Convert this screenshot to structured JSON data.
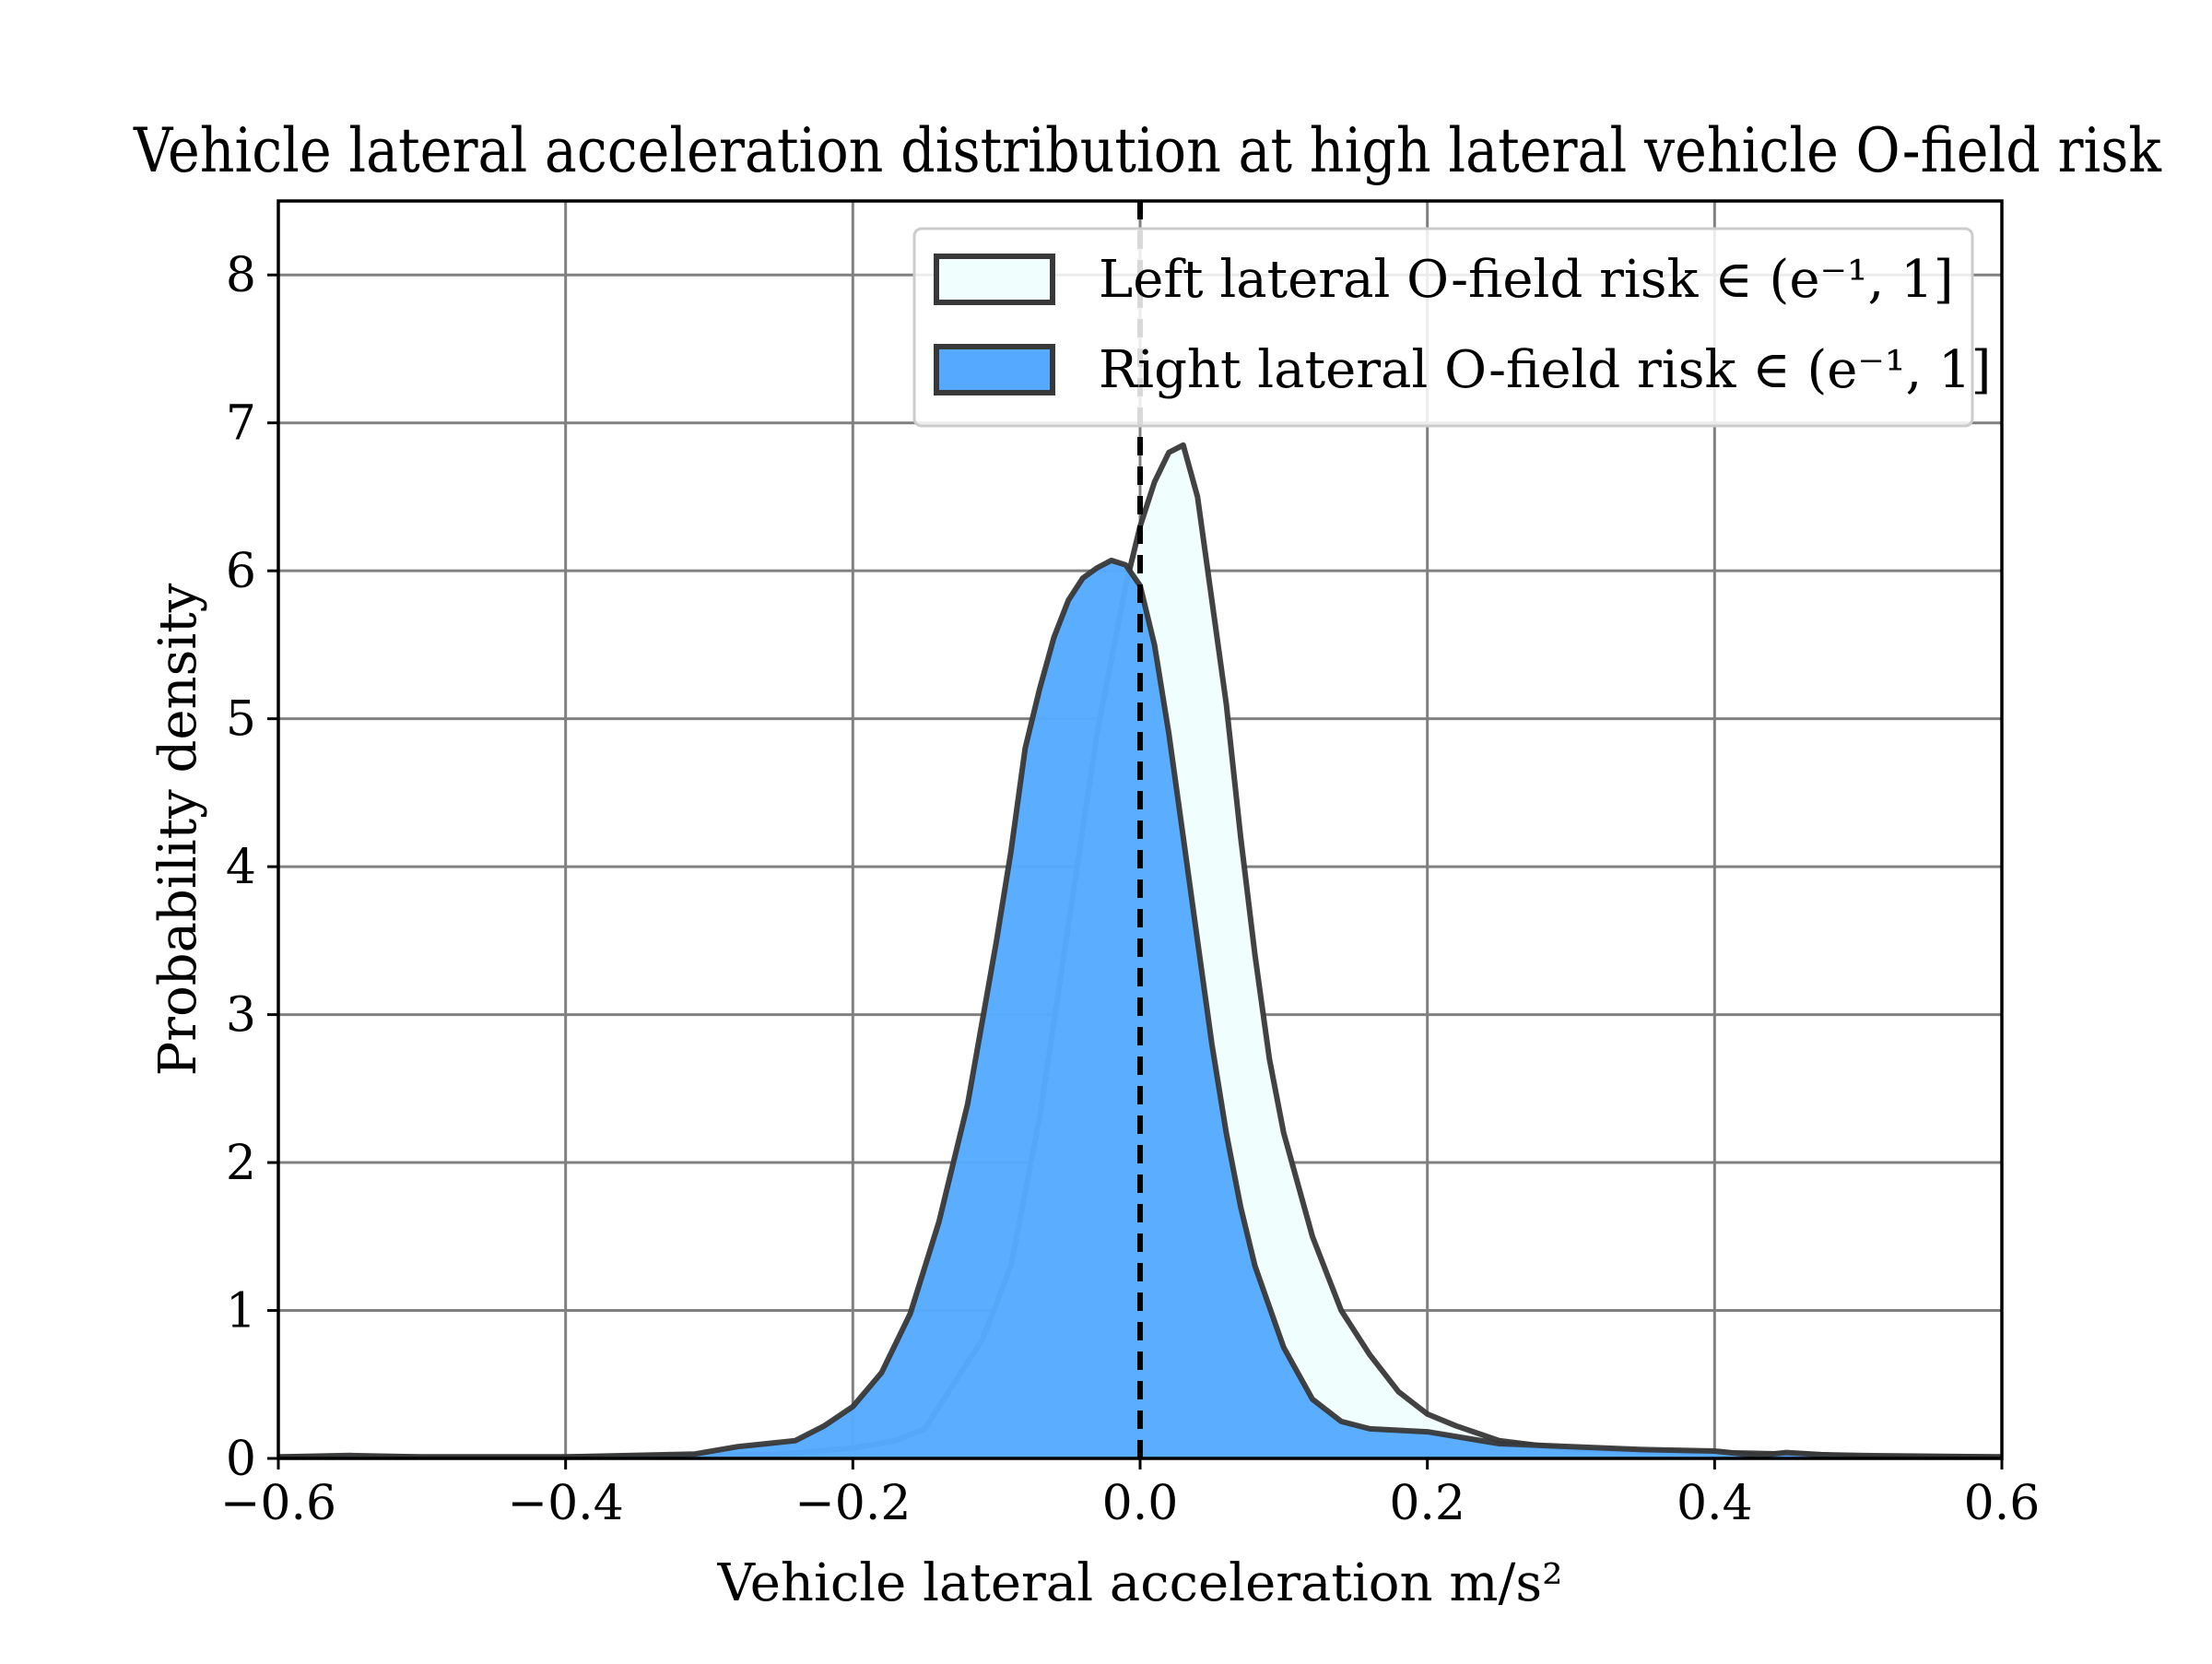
{
  "chart_data": {
    "type": "area",
    "title": "Vehicle lateral acceleration distribution at high lateral vehicle O-field risk",
    "xlabel": "Vehicle lateral acceleration m/s²",
    "ylabel": "Probability density",
    "xlim": [
      -0.6,
      0.6
    ],
    "ylim": [
      0,
      8.5
    ],
    "xticks": [
      -0.6,
      -0.4,
      -0.2,
      0.0,
      0.2,
      0.4,
      0.6
    ],
    "xtick_labels": [
      "−0.6",
      "−0.4",
      "−0.2",
      "0.0",
      "0.2",
      "0.4",
      "0.6"
    ],
    "yticks": [
      0,
      1,
      2,
      3,
      4,
      5,
      6,
      7,
      8
    ],
    "ytick_labels": [
      "0",
      "1",
      "2",
      "3",
      "4",
      "5",
      "6",
      "7",
      "8"
    ],
    "grid": true,
    "legend_position": "top-right",
    "reference_line": {
      "x": 0.0,
      "style": "dashed",
      "color": "#000000"
    },
    "series": [
      {
        "name": "Left lateral O-field risk ∈ (e⁻¹, 1]",
        "fill": "#f0fefe",
        "edge": "#383838",
        "x": [
          -0.6,
          -0.5,
          -0.4,
          -0.3,
          -0.25,
          -0.2,
          -0.17,
          -0.15,
          -0.13,
          -0.11,
          -0.09,
          -0.07,
          -0.05,
          -0.03,
          -0.01,
          0.0,
          0.01,
          0.02,
          0.03,
          0.04,
          0.05,
          0.06,
          0.07,
          0.08,
          0.09,
          0.1,
          0.12,
          0.14,
          0.16,
          0.18,
          0.2,
          0.22,
          0.25,
          0.3,
          0.35,
          0.4,
          0.45,
          0.5,
          0.6
        ],
        "y": [
          0.01,
          0.01,
          0.01,
          0.02,
          0.03,
          0.07,
          0.12,
          0.2,
          0.5,
          0.8,
          1.3,
          2.3,
          3.6,
          4.9,
          5.9,
          6.3,
          6.6,
          6.8,
          6.85,
          6.5,
          5.8,
          5.1,
          4.2,
          3.4,
          2.7,
          2.2,
          1.5,
          1.0,
          0.7,
          0.45,
          0.3,
          0.22,
          0.12,
          0.06,
          0.05,
          0.04,
          0.03,
          0.02,
          0.01
        ]
      },
      {
        "name": "Right lateral O-field risk ∈ (e⁻¹, 1]",
        "fill": "#55aaff",
        "edge": "#383838",
        "x": [
          -0.6,
          -0.55,
          -0.5,
          -0.4,
          -0.31,
          -0.28,
          -0.26,
          -0.24,
          -0.22,
          -0.2,
          -0.18,
          -0.16,
          -0.14,
          -0.12,
          -0.1,
          -0.09,
          -0.08,
          -0.07,
          -0.06,
          -0.05,
          -0.04,
          -0.03,
          -0.02,
          -0.01,
          0.0,
          0.01,
          0.02,
          0.03,
          0.04,
          0.05,
          0.06,
          0.07,
          0.08,
          0.1,
          0.12,
          0.14,
          0.16,
          0.2,
          0.25,
          0.3,
          0.35,
          0.4,
          0.43,
          0.45,
          0.5,
          0.6
        ],
        "y": [
          0.01,
          0.02,
          0.01,
          0.01,
          0.03,
          0.08,
          0.1,
          0.12,
          0.22,
          0.35,
          0.58,
          0.98,
          1.6,
          2.4,
          3.5,
          4.1,
          4.8,
          5.2,
          5.55,
          5.8,
          5.95,
          6.02,
          6.07,
          6.04,
          5.9,
          5.5,
          4.9,
          4.2,
          3.5,
          2.8,
          2.2,
          1.7,
          1.3,
          0.75,
          0.4,
          0.25,
          0.2,
          0.18,
          0.1,
          0.08,
          0.06,
          0.05,
          0.02,
          0.04,
          0.01,
          0.01
        ]
      }
    ]
  }
}
